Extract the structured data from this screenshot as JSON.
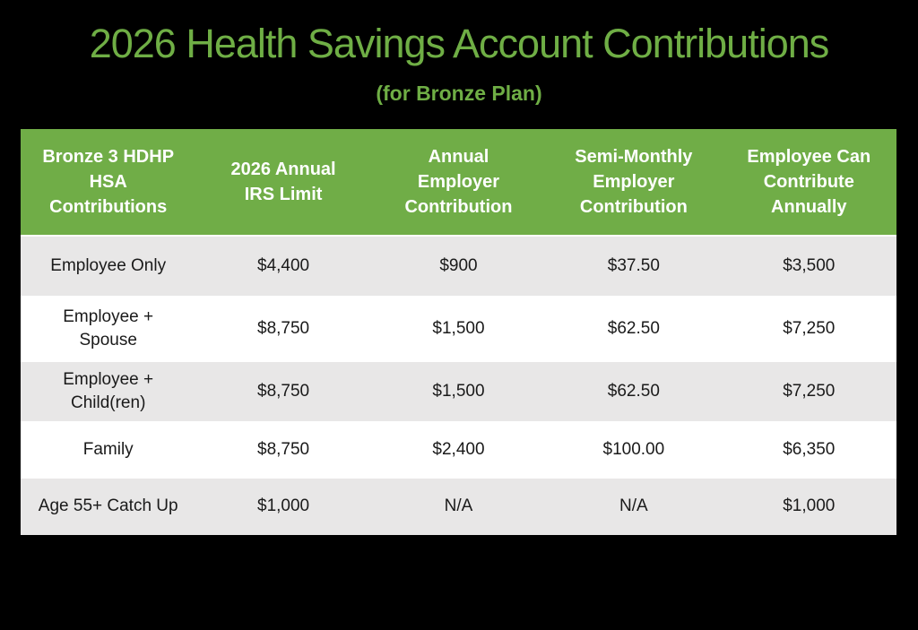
{
  "title": {
    "text": "2026 Health Savings Account Contributions",
    "color": "#6FAE45"
  },
  "subtitle": {
    "text": "(for Bronze Plan)"
  },
  "colors": {
    "background": "#000000",
    "header_bg": "#70AD47",
    "header_text": "#FFFFFF",
    "row_alt_bg": "#E8E7E7",
    "row_main_bg": "#FFFFFF",
    "body_text": "#1A1A1A"
  },
  "table": {
    "columns": [
      "Bronze 3 HDHP\nHSA\nContributions",
      "2026 Annual\nIRS Limit",
      "Annual\nEmployer\nContribution",
      "Semi-Monthly\nEmployer\nContribution",
      "Employee Can\nContribute\nAnnually"
    ],
    "rows": [
      [
        "Employee Only",
        "$4,400",
        "$900",
        "$37.50",
        "$3,500"
      ],
      [
        "Employee +\nSpouse",
        "$8,750",
        "$1,500",
        "$62.50",
        "$7,250"
      ],
      [
        "Employee +\nChild(ren)",
        "$8,750",
        "$1,500",
        "$62.50",
        "$7,250"
      ],
      [
        "Family",
        "$8,750",
        "$2,400",
        "$100.00",
        "$6,350"
      ],
      [
        "Age 55+ Catch Up",
        "$1,000",
        "N/A",
        "N/A",
        "$1,000"
      ]
    ]
  }
}
